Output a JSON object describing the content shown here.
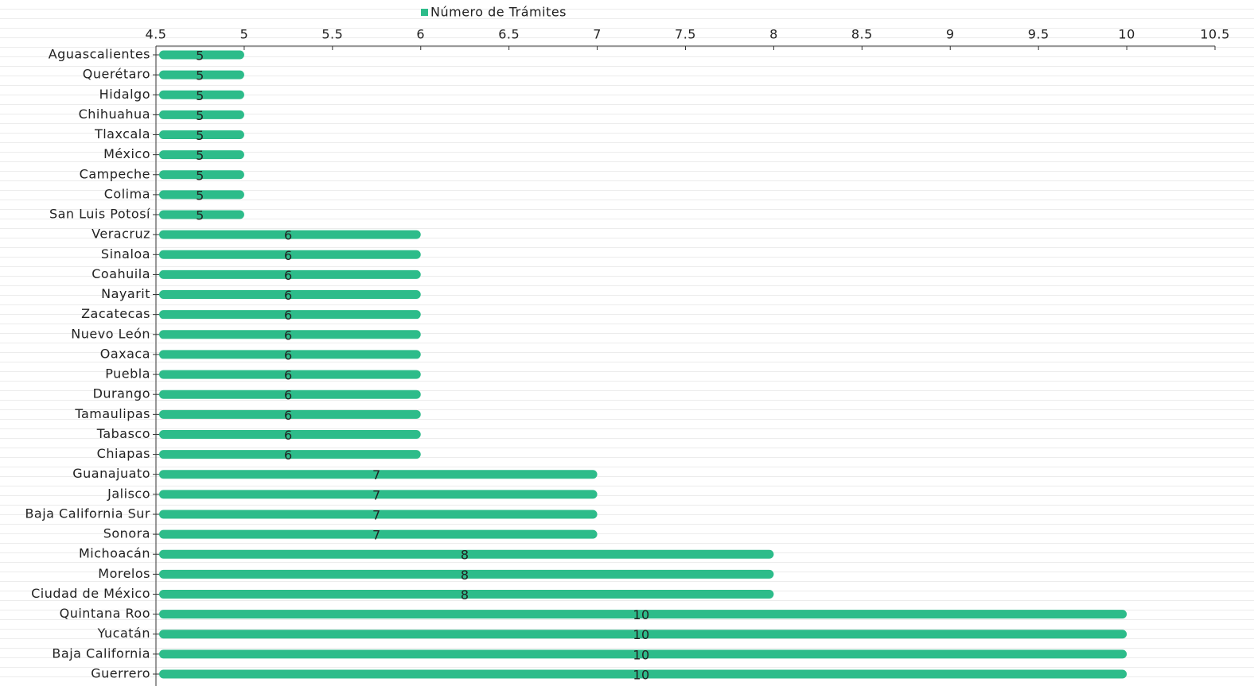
{
  "chart_data": {
    "type": "bar",
    "orientation": "horizontal",
    "categories": [
      "Aguascalientes",
      "Querétaro",
      "Hidalgo",
      "Chihuahua",
      "Tlaxcala",
      "México",
      "Campeche",
      "Colima",
      "San Luis Potosí",
      "Veracruz",
      "Sinaloa",
      "Coahuila",
      "Nayarit",
      "Zacatecas",
      "Nuevo León",
      "Oaxaca",
      "Puebla",
      "Durango",
      "Tamaulipas",
      "Tabasco",
      "Chiapas",
      "Guanajuato",
      "Jalisco",
      "Baja California Sur",
      "Sonora",
      "Michoacán",
      "Morelos",
      "Ciudad de México",
      "Quintana Roo",
      "Yucatán",
      "Baja California",
      "Guerrero"
    ],
    "series": [
      {
        "name": "Número de Trámites",
        "color": "#2dbc8a",
        "values": [
          5,
          5,
          5,
          5,
          5,
          5,
          5,
          5,
          5,
          6,
          6,
          6,
          6,
          6,
          6,
          6,
          6,
          6,
          6,
          6,
          6,
          7,
          7,
          7,
          7,
          8,
          8,
          8,
          10,
          10,
          10,
          10
        ]
      }
    ],
    "xlim": [
      4.5,
      10.5
    ],
    "xticks": [
      4.5,
      5,
      5.5,
      6,
      6.5,
      7,
      7.5,
      8,
      8.5,
      9,
      9.5,
      10,
      10.5
    ]
  }
}
